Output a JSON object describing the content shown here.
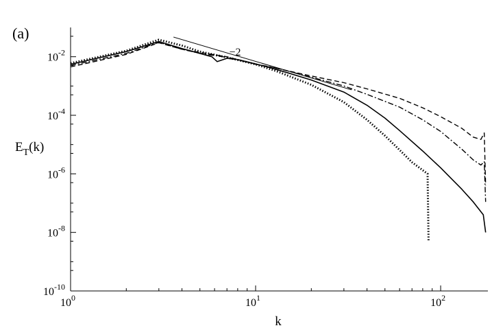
{
  "chart_data": {
    "type": "line",
    "panel_label": "(a)",
    "xlabel": "k",
    "ylabel": {
      "main": "E",
      "sub": "T",
      "tail": "(k)"
    },
    "xscale": "log",
    "yscale": "log",
    "xlim": [
      1,
      180
    ],
    "ylim": [
      1e-10,
      0.1
    ],
    "x_ticks": [
      {
        "value": 1,
        "base": "10",
        "exp": "0"
      },
      {
        "value": 10,
        "base": "10",
        "exp": "1"
      },
      {
        "value": 100,
        "base": "10",
        "exp": "2"
      }
    ],
    "y_ticks": [
      {
        "value": 0.01,
        "base": "10",
        "exp": "-2"
      },
      {
        "value": 0.0001,
        "base": "10",
        "exp": "-4"
      },
      {
        "value": 1e-06,
        "base": "10",
        "exp": "-6"
      },
      {
        "value": 1e-08,
        "base": "10",
        "exp": "-8"
      },
      {
        "value": 1e-10,
        "base": "10",
        "exp": "-10"
      }
    ],
    "grid": false,
    "series": [
      {
        "style": "solid",
        "points": [
          [
            1,
            0.0055
          ],
          [
            2,
            0.015
          ],
          [
            3,
            0.033
          ],
          [
            4,
            0.019
          ],
          [
            5,
            0.013
          ],
          [
            5.8,
            0.01
          ],
          [
            6.2,
            0.0068
          ],
          [
            7,
            0.0088
          ],
          [
            8,
            0.008
          ],
          [
            10,
            0.0057
          ],
          [
            12,
            0.0042
          ],
          [
            15,
            0.0028
          ],
          [
            20,
            0.0016
          ],
          [
            30,
            0.00062
          ],
          [
            40,
            0.00022
          ],
          [
            50,
            8e-05
          ],
          [
            60,
            3e-05
          ],
          [
            80,
            6e-06
          ],
          [
            100,
            1.6e-06
          ],
          [
            130,
            3e-07
          ],
          [
            150,
            1.1e-07
          ],
          [
            170,
            4e-08
          ],
          [
            175,
            1e-08
          ]
        ]
      },
      {
        "style": "dashed",
        "points": [
          [
            1,
            0.0045
          ],
          [
            2,
            0.012
          ],
          [
            3,
            0.03
          ],
          [
            4,
            0.018
          ],
          [
            5,
            0.014
          ],
          [
            7,
            0.01
          ],
          [
            10,
            0.0055
          ],
          [
            13,
            0.004
          ],
          [
            20,
            0.0022
          ],
          [
            30,
            0.0013
          ],
          [
            40,
            0.0008
          ],
          [
            60,
            0.00038
          ],
          [
            80,
            0.00018
          ],
          [
            100,
            9e-05
          ],
          [
            130,
            3.6e-05
          ],
          [
            150,
            1.8e-05
          ],
          [
            165,
            1.5e-05
          ],
          [
            172,
            2.5e-05
          ],
          [
            175,
            4e-07
          ]
        ]
      },
      {
        "style": "dash-dot",
        "points": [
          [
            1,
            0.005
          ],
          [
            2,
            0.013
          ],
          [
            3,
            0.031
          ],
          [
            4,
            0.018
          ],
          [
            5,
            0.013
          ],
          [
            7,
            0.0095
          ],
          [
            10,
            0.0056
          ],
          [
            13,
            0.0041
          ],
          [
            20,
            0.002
          ],
          [
            30,
            0.001
          ],
          [
            40,
            0.00052
          ],
          [
            60,
            0.00019
          ],
          [
            80,
            7e-05
          ],
          [
            100,
            2.8e-05
          ],
          [
            130,
            7e-06
          ],
          [
            150,
            3e-06
          ],
          [
            165,
            2e-06
          ],
          [
            172,
            2.6e-06
          ],
          [
            175,
            1.1e-07
          ]
        ]
      },
      {
        "style": "dotted",
        "points": [
          [
            1,
            0.006
          ],
          [
            2,
            0.016
          ],
          [
            3,
            0.038
          ],
          [
            4,
            0.024
          ],
          [
            5,
            0.015
          ],
          [
            7,
            0.0095
          ],
          [
            10,
            0.0055
          ],
          [
            13,
            0.0032
          ],
          [
            20,
            0.0011
          ],
          [
            30,
            0.00028
          ],
          [
            40,
            7e-05
          ],
          [
            50,
            2e-05
          ],
          [
            60,
            6.5e-06
          ],
          [
            70,
            2.5e-06
          ],
          [
            85,
            1e-06
          ],
          [
            86,
            5e-09
          ]
        ]
      }
    ],
    "reference_line": {
      "label": "−2",
      "points": [
        [
          3.6,
          0.047
        ],
        [
          33,
          0.00074
        ]
      ],
      "label_at": [
        7.2,
        0.011
      ]
    }
  }
}
